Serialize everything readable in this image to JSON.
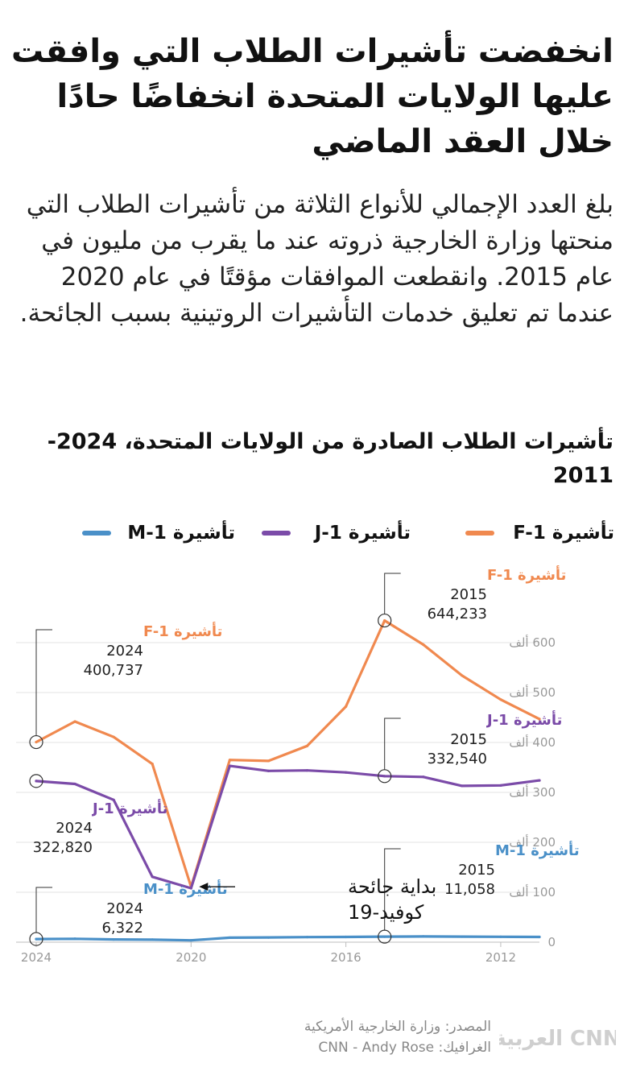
{
  "headline": "انخفضت تأشيرات الطلاب التي وافقت عليها الولايات المتحدة انخفاضًا حادًا خلال العقد الماضي",
  "intro": "بلغ العدد الإجمالي للأنواع الثلاثة من تأشيرات الطلاب التي منحتها وزارة الخارجية ذروته عند ما يقرب من مليون في عام 2015. وانقطعت الموافقات مؤقتًا في عام 2020 عندما تم تعليق خدمات التأشيرات الروتينية بسبب الجائحة.",
  "chart_title": "تأشيرات الطلاب الصادرة من الولايات المتحدة، 2024-2011",
  "legend": [
    {
      "label": "تأشيرة F-1",
      "color": "#f0894f"
    },
    {
      "label": "تأشيرة J-1",
      "color": "#7b4ba8"
    },
    {
      "label": "تأشيرة M-1",
      "color": "#4a90c8"
    }
  ],
  "source": {
    "line1": "المصدر: وزارة الخارجية الأمريكية",
    "line2": "الغرافيك: CNN - Andy Rose"
  },
  "logo_text": "العربية CNN",
  "event_note": {
    "line1": "بداية جائحة",
    "line2": "كوفيد-19"
  },
  "annotations": [
    {
      "series": "F-1",
      "label": "تأشيرة F-1",
      "year": "2024",
      "value": "400,737"
    },
    {
      "series": "F-1",
      "label": "تأشيرة F-1",
      "year": "2015",
      "value": "644,233"
    },
    {
      "series": "J-1",
      "label": "تأشيرة J-1",
      "year": "2024",
      "value": "322,820"
    },
    {
      "series": "J-1",
      "label": "تأشيرة J-1",
      "year": "2015",
      "value": "332,540"
    },
    {
      "series": "M-1",
      "label": "تأشيرة M-1",
      "year": "2024",
      "value": "6,322"
    },
    {
      "series": "M-1",
      "label": "تأشيرة M-1",
      "year": "2015",
      "value": "11,058"
    }
  ],
  "chart_data": {
    "type": "line",
    "title": "تأشيرات الطلاب الصادرة من الولايات المتحدة، 2024-2011",
    "x": [
      2024,
      2023,
      2022,
      2021,
      2020,
      2019,
      2018,
      2017,
      2016,
      2015,
      2014,
      2013,
      2012,
      2011
    ],
    "x_ticks": [
      "2024",
      "2020",
      "2016",
      "2012"
    ],
    "x_reversed": true,
    "y_ticks": [
      {
        "value": 0,
        "label": "0"
      },
      {
        "value": 100000,
        "label": "100 ألف"
      },
      {
        "value": 200000,
        "label": "200 ألف"
      },
      {
        "value": 300000,
        "label": "300 ألف"
      },
      {
        "value": 400000,
        "label": "400 ألف"
      },
      {
        "value": 500000,
        "label": "500 ألف"
      },
      {
        "value": 600000,
        "label": "600 ألف"
      }
    ],
    "ylim": [
      0,
      650000
    ],
    "grid": true,
    "series": [
      {
        "name": "تأشيرة F-1",
        "key": "F-1",
        "color": "#f0894f",
        "values": [
          400737,
          442000,
          411000,
          357000,
          111000,
          365000,
          363000,
          393000,
          472000,
          644233,
          596000,
          534000,
          486000,
          447000
        ]
      },
      {
        "name": "تأشيرة J-1",
        "key": "J-1",
        "color": "#7b4ba8",
        "values": [
          322820,
          317000,
          285000,
          131000,
          108000,
          353000,
          343000,
          344000,
          340000,
          332540,
          331000,
          313000,
          314000,
          324000
        ]
      },
      {
        "name": "تأشيرة M-1",
        "key": "M-1",
        "color": "#4a90c8",
        "values": [
          6322,
          6800,
          5500,
          5000,
          3700,
          9000,
          9500,
          10200,
          10500,
          11058,
          11500,
          11200,
          10800,
          10500
        ]
      }
    ]
  }
}
